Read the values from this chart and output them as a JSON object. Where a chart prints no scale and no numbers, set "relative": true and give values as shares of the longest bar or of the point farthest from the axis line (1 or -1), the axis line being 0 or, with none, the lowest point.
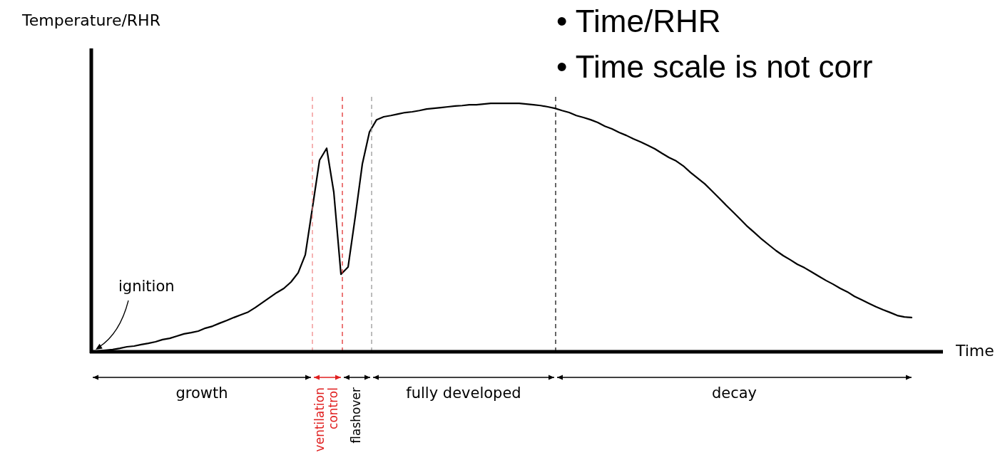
{
  "chart_data": {
    "type": "line",
    "xlabel": "Time",
    "ylabel": "Temperature/RHR",
    "relative": true,
    "tick_labels": false,
    "legend": false,
    "marker": "none",
    "line_style": "solid",
    "categories": [
      null,
      null,
      null,
      null,
      null,
      null,
      null,
      null,
      null,
      null,
      null,
      null,
      null,
      null,
      null,
      null,
      null,
      null,
      null,
      null,
      null,
      null,
      null,
      null,
      null,
      null,
      null,
      null,
      null,
      null,
      null,
      null,
      null,
      null,
      null,
      null,
      null,
      null,
      null,
      null,
      null,
      null,
      null,
      null,
      null,
      null,
      null,
      null,
      null,
      null,
      null,
      null,
      null,
      null,
      null,
      null,
      null,
      null,
      null,
      null,
      null,
      null,
      null,
      null,
      null,
      null,
      null,
      null,
      null,
      null,
      null,
      null,
      null,
      null,
      null,
      null,
      null,
      null,
      null,
      null,
      null,
      null,
      null,
      null,
      null,
      null,
      null,
      null,
      null,
      null,
      null,
      null,
      null,
      null,
      null,
      null,
      null,
      null,
      null,
      null,
      null,
      null,
      null,
      null,
      null,
      null,
      null,
      null,
      null,
      null,
      null,
      null,
      null,
      null,
      null,
      null
    ],
    "series": [
      {
        "color": "#000000",
        "values": [
          0,
          0.003,
          0.006,
          0.009,
          0.014,
          0.02,
          0.023,
          0.029,
          0.034,
          0.04,
          0.049,
          0.054,
          0.063,
          0.072,
          0.077,
          0.083,
          0.095,
          0.103,
          0.115,
          0.126,
          0.138,
          0.149,
          0.16,
          0.178,
          0.198,
          0.218,
          0.238,
          0.255,
          0.281,
          0.318,
          0.39,
          0.579,
          0.771,
          0.819,
          0.642,
          0.312,
          0.341,
          0.542,
          0.756,
          0.885,
          0.934,
          0.946,
          0.951,
          0.957,
          0.963,
          0.966,
          0.971,
          0.977,
          0.98,
          0.983,
          0.986,
          0.989,
          0.991,
          0.994,
          0.994,
          0.997,
          1,
          1,
          1,
          1,
          1,
          0.997,
          0.994,
          0.991,
          0.986,
          0.98,
          0.971,
          0.963,
          0.951,
          0.943,
          0.934,
          0.923,
          0.908,
          0.897,
          0.883,
          0.871,
          0.857,
          0.845,
          0.831,
          0.817,
          0.799,
          0.782,
          0.768,
          0.748,
          0.722,
          0.699,
          0.676,
          0.648,
          0.619,
          0.59,
          0.562,
          0.533,
          0.504,
          0.479,
          0.453,
          0.43,
          0.407,
          0.387,
          0.37,
          0.352,
          0.338,
          0.321,
          0.304,
          0.287,
          0.272,
          0.255,
          0.241,
          0.223,
          0.209,
          0.195,
          0.181,
          0.169,
          0.158,
          0.146,
          0.14,
          0.138
        ]
      }
    ],
    "annotations": [
      "growth",
      "ventilation control",
      "flashover",
      "fully developed",
      "decay",
      "ignition",
      "• Time/RHR",
      "• Time scale is not corr"
    ]
  }
}
